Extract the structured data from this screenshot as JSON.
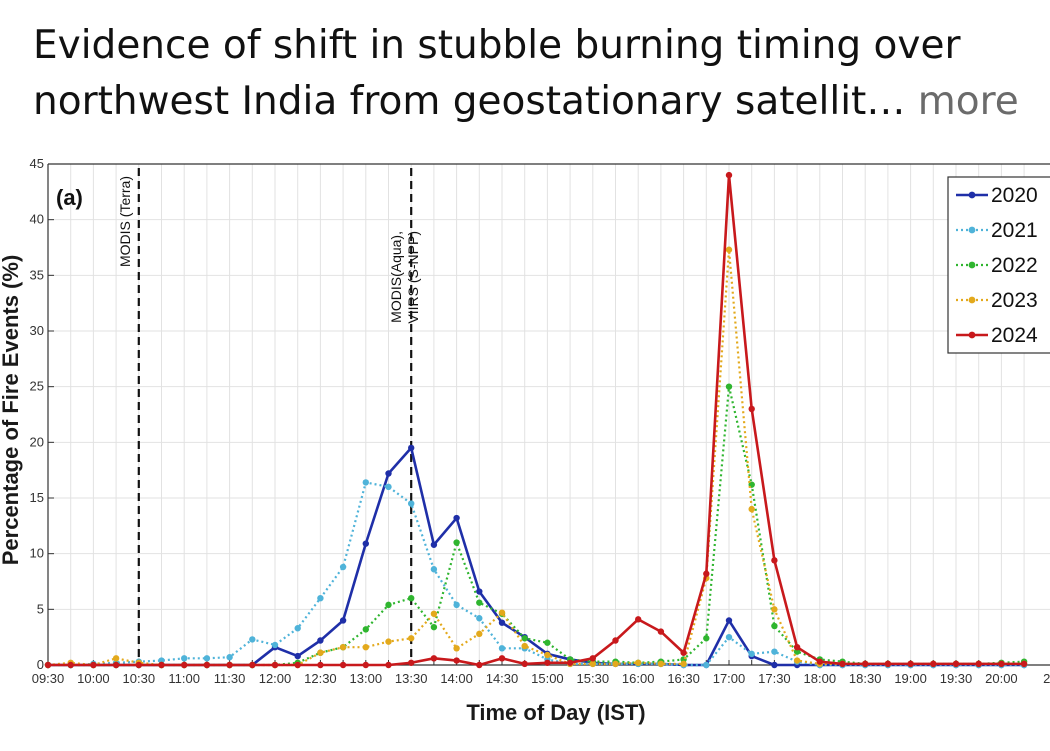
{
  "headline": {
    "line1": "Evidence of shift in stubble burning timing over",
    "line2": "northwest India from geostationary satellit…",
    "more": "more"
  },
  "chart_data": {
    "type": "line",
    "panel_label": "(a)",
    "title": "",
    "xlabel": "Time of Day (IST)",
    "ylabel": "Percentage of Fire Events (%)",
    "ylim": [
      0,
      45
    ],
    "yticks": [
      0,
      5,
      10,
      15,
      20,
      25,
      30,
      35,
      40,
      45
    ],
    "grid": true,
    "legend_position": "top-right",
    "x": [
      "09:30",
      "09:45",
      "10:00",
      "10:15",
      "10:30",
      "10:45",
      "11:00",
      "11:15",
      "11:30",
      "11:45",
      "12:00",
      "12:15",
      "12:30",
      "12:45",
      "13:00",
      "13:15",
      "13:30",
      "13:45",
      "14:00",
      "14:15",
      "14:30",
      "14:45",
      "15:00",
      "15:15",
      "15:30",
      "15:45",
      "16:00",
      "16:15",
      "16:30",
      "16:45",
      "17:00",
      "17:15",
      "17:30",
      "17:45",
      "18:00",
      "18:15",
      "18:30",
      "18:45",
      "19:00",
      "19:15",
      "19:30",
      "19:45",
      "20:00",
      "20:15"
    ],
    "xtick_labels": [
      "09:30",
      "10:00",
      "10:30",
      "11:00",
      "11:30",
      "12:00",
      "12:30",
      "13:00",
      "13:30",
      "14:00",
      "14:30",
      "15:00",
      "15:30",
      "16:00",
      "16:30",
      "17:00",
      "17:30",
      "18:00",
      "18:30",
      "19:00",
      "19:30",
      "20:00",
      "2"
    ],
    "series": [
      {
        "name": "2020",
        "color": "#1f2fa8",
        "style": "solid",
        "values": [
          0,
          0,
          0,
          0,
          0,
          0,
          0,
          0,
          0,
          0,
          1.6,
          0.8,
          2.2,
          4.0,
          10.9,
          17.2,
          19.5,
          10.8,
          13.2,
          6.6,
          3.8,
          2.5,
          1.0,
          0.5,
          0.2,
          0.1,
          0.1,
          0.1,
          0,
          0,
          4.0,
          0.8,
          0,
          0,
          0,
          0,
          0,
          0,
          0,
          0,
          0,
          0,
          0,
          0
        ]
      },
      {
        "name": "2021",
        "color": "#4fb3d9",
        "style": "dotted",
        "values": [
          0,
          0,
          0.1,
          0.2,
          0.3,
          0.4,
          0.6,
          0.6,
          0.7,
          2.3,
          1.8,
          3.3,
          6.0,
          8.8,
          16.4,
          16.0,
          14.5,
          8.6,
          5.4,
          4.2,
          1.5,
          1.5,
          0.5,
          0.1,
          0.1,
          0.1,
          0.1,
          0.1,
          0,
          0,
          2.5,
          1.0,
          1.2,
          0.3,
          0,
          0,
          0,
          0,
          0,
          0,
          0,
          0,
          0,
          0
        ]
      },
      {
        "name": "2022",
        "color": "#2fb52f",
        "style": "dotted",
        "values": [
          0,
          0,
          0,
          0,
          0,
          0,
          0,
          0,
          0,
          0,
          0,
          0.2,
          1.1,
          1.6,
          3.2,
          5.4,
          6.0,
          3.4,
          11.0,
          5.6,
          4.6,
          2.4,
          2.0,
          0.5,
          0.3,
          0.3,
          0.2,
          0.3,
          0.5,
          2.4,
          25.0,
          16.2,
          3.5,
          1.2,
          0.5,
          0.3,
          0.1,
          0.1,
          0.1,
          0.1,
          0.1,
          0.1,
          0.2,
          0.3
        ]
      },
      {
        "name": "2023",
        "color": "#e3a91c",
        "style": "dotted",
        "values": [
          0,
          0.2,
          0,
          0.6,
          0.2,
          0,
          0,
          0,
          0,
          0,
          0,
          0,
          1.1,
          1.6,
          1.6,
          2.1,
          2.4,
          4.6,
          1.5,
          2.8,
          4.7,
          1.7,
          0.9,
          0.1,
          0.1,
          0.1,
          0.2,
          0.1,
          0.1,
          7.8,
          37.3,
          14.0,
          5.0,
          0.4,
          0.1,
          0.1,
          0.1,
          0.1,
          0.1,
          0.1,
          0.1,
          0.1,
          0.1,
          0.1
        ]
      },
      {
        "name": "2024",
        "color": "#c8191c",
        "style": "solid",
        "values": [
          0,
          0,
          0,
          0,
          0,
          0,
          0,
          0,
          0,
          0,
          0,
          0,
          0,
          0,
          0,
          0,
          0.2,
          0.6,
          0.4,
          0,
          0.6,
          0.1,
          0.2,
          0.2,
          0.6,
          2.2,
          4.1,
          3.0,
          1.1,
          8.2,
          44.0,
          23.0,
          9.4,
          1.6,
          0.3,
          0.1,
          0.1,
          0.1,
          0.1,
          0.1,
          0.1,
          0.1,
          0.1,
          0.1
        ]
      }
    ],
    "vertical_markers": [
      {
        "x": "10:30",
        "label": "MODIS (Terra)"
      },
      {
        "x": "13:30",
        "label_line1": "MODIS(Aqua),",
        "label_line2": "VIIRS (S-NPP)"
      }
    ]
  }
}
